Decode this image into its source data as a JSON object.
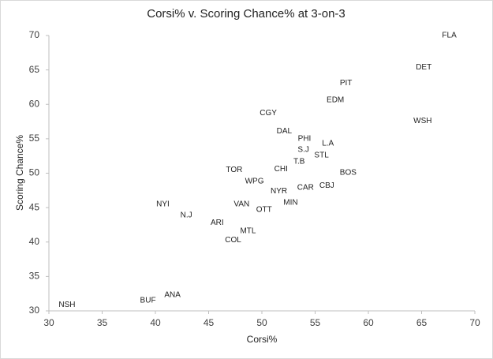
{
  "chart_data": {
    "type": "scatter",
    "title": "Corsi% v. Scoring Chance% at 3-on-3",
    "x_label": "Corsi%",
    "y_label": "Scoring Chance%",
    "labels": [
      "FLA",
      "DET",
      "PIT",
      "EDM",
      "WSH",
      "CGY",
      "DAL",
      "PHI",
      "L.A",
      "S.J",
      "STL",
      "T.B",
      "CHI",
      "TOR",
      "BOS",
      "WPG",
      "CBJ",
      "CAR",
      "NYR",
      "MIN",
      "NYI",
      "VAN",
      "OTT",
      "N.J",
      "ARI",
      "MTL",
      "COL",
      "ANA",
      "BUF",
      "NSH"
    ],
    "x": [
      67.6,
      65.2,
      57.9,
      56.9,
      65.1,
      50.6,
      52.1,
      54.0,
      56.2,
      53.9,
      55.6,
      53.5,
      51.8,
      47.4,
      58.1,
      49.3,
      56.1,
      54.1,
      51.6,
      52.7,
      40.7,
      48.1,
      50.2,
      42.9,
      45.8,
      48.7,
      47.3,
      41.6,
      39.3,
      31.7
    ],
    "values": [
      70.0,
      65.4,
      63.1,
      60.6,
      57.6,
      58.7,
      56.1,
      55.0,
      54.3,
      53.4,
      52.6,
      51.7,
      50.6,
      50.5,
      50.1,
      48.8,
      48.2,
      47.9,
      47.4,
      45.7,
      45.5,
      45.5,
      44.7,
      43.9,
      42.8,
      41.6,
      40.3,
      32.3,
      31.5,
      30.9
    ],
    "xlim": [
      30,
      70
    ],
    "ylim": [
      30,
      70
    ],
    "xticks": [
      30,
      35,
      40,
      45,
      50,
      55,
      60,
      65,
      70
    ],
    "yticks": [
      30,
      35,
      40,
      45,
      50,
      55,
      60,
      65,
      70
    ]
  }
}
